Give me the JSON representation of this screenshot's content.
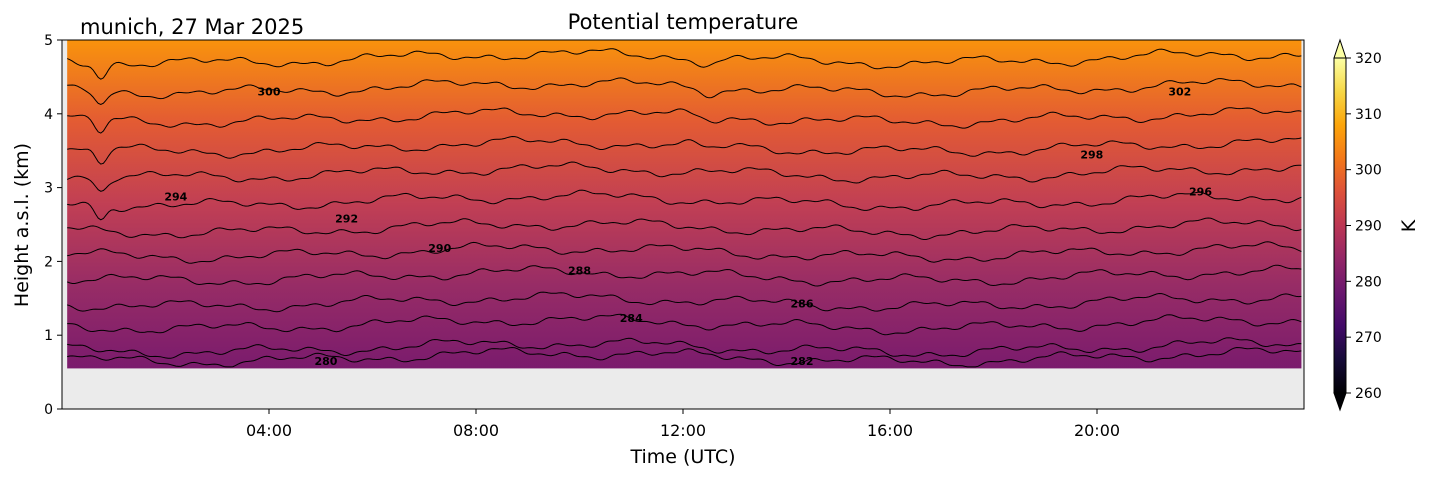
{
  "chart_data": {
    "type": "heatmap",
    "title": "Potential temperature",
    "subtitle": "munich, 27 Mar 2025",
    "xlabel": "Time (UTC)",
    "ylabel": "Height a.s.l. (km)",
    "xlim": [
      0,
      24
    ],
    "ylim": [
      0,
      5
    ],
    "xticks": [
      {
        "value": 4,
        "label": "04:00"
      },
      {
        "value": 8,
        "label": "08:00"
      },
      {
        "value": 12,
        "label": "12:00"
      },
      {
        "value": 16,
        "label": "16:00"
      },
      {
        "value": 20,
        "label": "20:00"
      }
    ],
    "yticks": [
      {
        "value": 0,
        "label": "0"
      },
      {
        "value": 1,
        "label": "1"
      },
      {
        "value": 2,
        "label": "2"
      },
      {
        "value": 3,
        "label": "3"
      },
      {
        "value": 4,
        "label": "4"
      },
      {
        "value": 5,
        "label": "5"
      }
    ],
    "data_extent": {
      "x": [
        0.1,
        23.95
      ],
      "y": [
        0.55,
        5
      ]
    },
    "no_data_color": "#ebebeb",
    "contour_levels": [
      {
        "value": 280,
        "height": 0.7
      },
      {
        "value": 282,
        "height": 0.83
      },
      {
        "value": 284,
        "height": 1.15
      },
      {
        "value": 286,
        "height": 1.45
      },
      {
        "value": 288,
        "height": 1.8
      },
      {
        "value": 290,
        "height": 2.12
      },
      {
        "value": 292,
        "height": 2.45
      },
      {
        "value": 294,
        "height": 2.82
      },
      {
        "value": 296,
        "height": 3.2
      },
      {
        "value": 298,
        "height": 3.55
      },
      {
        "value": 300,
        "height": 3.95
      },
      {
        "value": 302,
        "height": 4.35
      },
      {
        "value": 304,
        "height": 4.75
      }
    ],
    "contour_labels": [
      {
        "text": "300",
        "x": 4.0,
        "y": 4.3
      },
      {
        "text": "302",
        "x": 21.6,
        "y": 4.3
      },
      {
        "text": "298",
        "x": 19.9,
        "y": 3.45
      },
      {
        "text": "294",
        "x": 2.2,
        "y": 2.88
      },
      {
        "text": "296",
        "x": 22.0,
        "y": 2.95
      },
      {
        "text": "292",
        "x": 5.5,
        "y": 2.58
      },
      {
        "text": "290",
        "x": 7.3,
        "y": 2.18
      },
      {
        "text": "288",
        "x": 10.0,
        "y": 1.88
      },
      {
        "text": "286",
        "x": 14.3,
        "y": 1.43
      },
      {
        "text": "284",
        "x": 11.0,
        "y": 1.23
      },
      {
        "text": "282",
        "x": 14.3,
        "y": 0.65
      },
      {
        "text": "280",
        "x": 5.1,
        "y": 0.65
      }
    ],
    "colorbar": {
      "label": "K",
      "colormap": "inferno",
      "range": [
        260,
        320
      ],
      "ticks": [
        260,
        270,
        280,
        290,
        300,
        310,
        320
      ],
      "extend": "both"
    }
  }
}
